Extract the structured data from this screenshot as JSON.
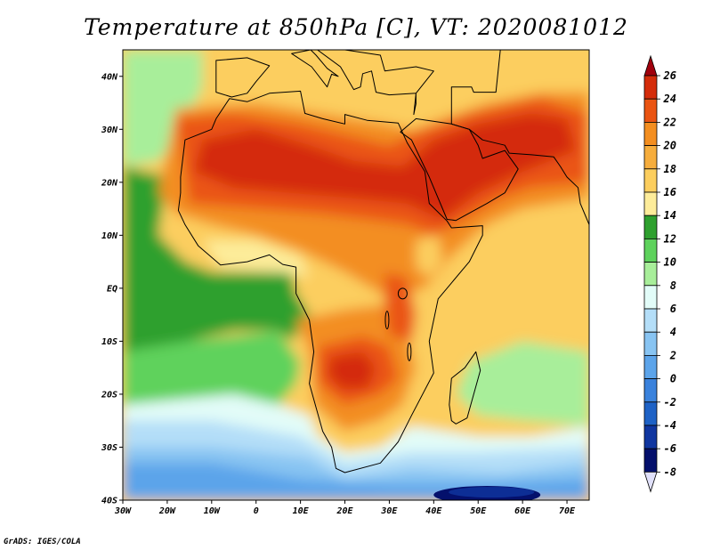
{
  "title": "Temperature at 850hPa [C], VT: 2020081012",
  "credit": "GrADS: IGES/COLA",
  "chart_data": {
    "type": "heatmap",
    "title": "Temperature at 850hPa [C], VT: 2020081012",
    "x_axis": {
      "range": [
        -30,
        75
      ],
      "ticks": [
        -30,
        -20,
        -10,
        0,
        10,
        20,
        30,
        40,
        50,
        60,
        70
      ],
      "tick_labels": [
        "30W",
        "20W",
        "10W",
        "0",
        "10E",
        "20E",
        "30E",
        "40E",
        "50E",
        "60E",
        "70E"
      ]
    },
    "y_axis": {
      "range": [
        -40,
        45
      ],
      "ticks": [
        40,
        30,
        20,
        10,
        0,
        -10,
        -20,
        -30,
        -40
      ],
      "tick_labels": [
        "40N",
        "30N",
        "20N",
        "10N",
        "EQ",
        "10S",
        "20S",
        "30S",
        "40S"
      ]
    },
    "colorbar": {
      "labels": [
        "26",
        "24",
        "22",
        "20",
        "18",
        "16",
        "14",
        "12",
        "10",
        "8",
        "6",
        "4",
        "2",
        "0",
        "-2",
        "-4",
        "-6",
        "-8"
      ],
      "colors": [
        "#a0000c",
        "#d42c0a",
        "#ea5412",
        "#f38e20",
        "#f6ad3c",
        "#fcce5e",
        "#fdec9a",
        "#2ea02e",
        "#5ed25c",
        "#a8ee9a",
        "#e2fcf8",
        "#b4def8",
        "#88c4f2",
        "#5ca4ea",
        "#3a82dc",
        "#1e62c6",
        "#1036a0",
        "#04106c",
        "#e0e0fa"
      ],
      "extend": "both"
    },
    "field_description": "Hottest (24-26) over the Sahara and Arabian Peninsula; 18-22 over most of tropical Africa; 10-14 over the equatorial Atlantic; 6-10 over the Indian Ocean east of Madagascar; -8 to 4 over the Southern Ocean south of 30S."
  }
}
